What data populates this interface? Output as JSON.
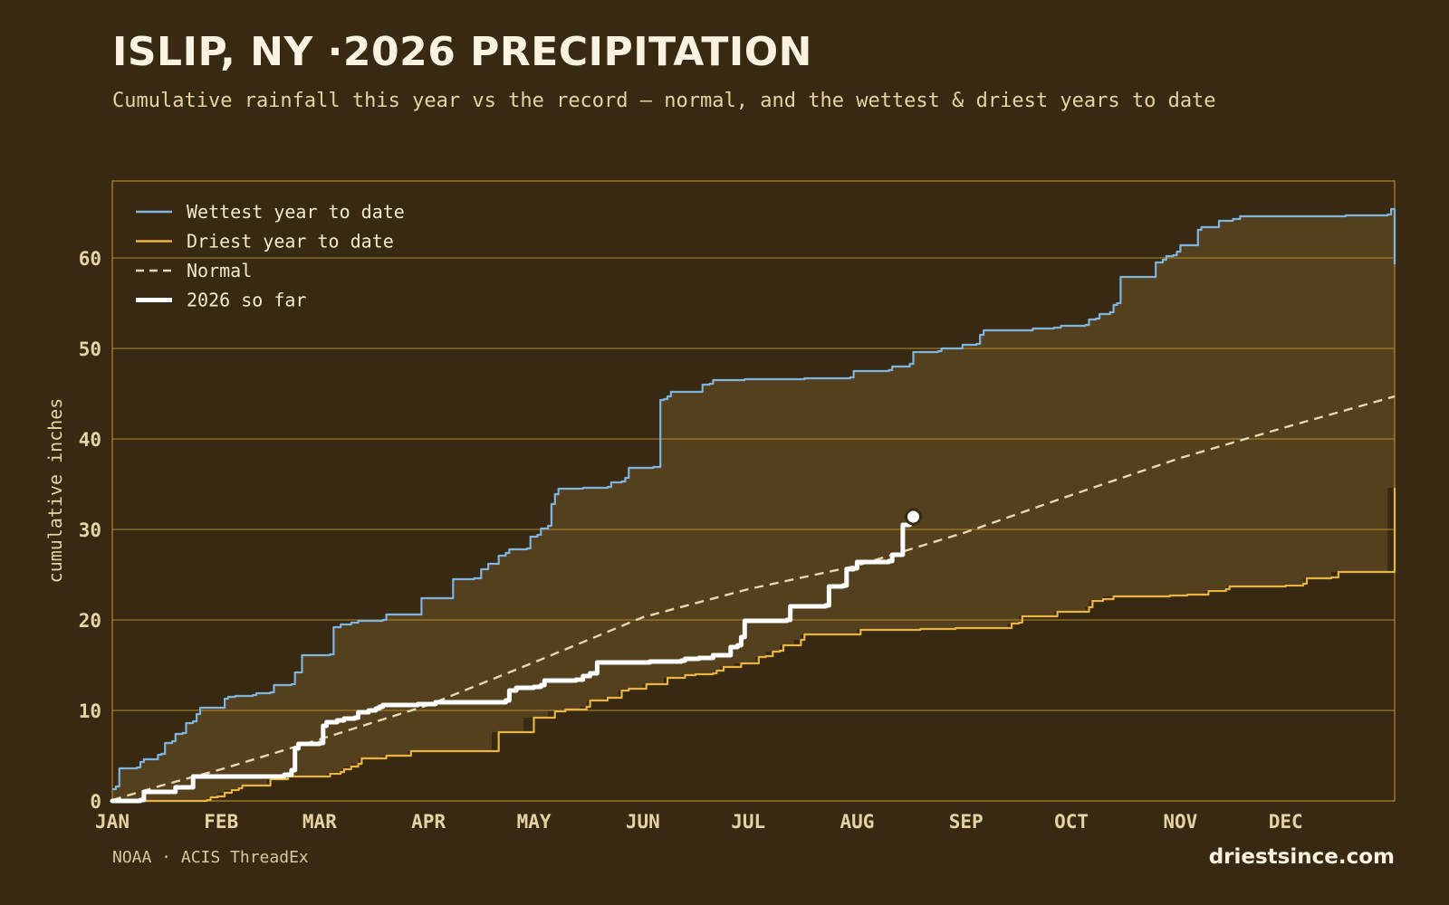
{
  "header": {
    "title": "ISLIP, NY ·2026 PRECIPITATION",
    "subtitle": "Cumulative rainfall this year vs the record — normal, and the wettest & driest years to date"
  },
  "footer": {
    "source": "NOAA · ACIS ThreadEx",
    "brand": "driestsince.com"
  },
  "colors": {
    "background": "#382a12",
    "band_fill": "#54401e",
    "grid": "#c99a32",
    "wettest": "#7fb4de",
    "driest": "#e8b341",
    "normal": "#e6d8b4",
    "current": "#ffffff",
    "tick_text": "#e6d3a4"
  },
  "chart_data": {
    "type": "line",
    "title": "ISLIP, NY ·2026 PRECIPITATION",
    "xlabel": "",
    "ylabel": "cumulative inches",
    "x_unit": "day of year",
    "xlim": [
      1,
      366
    ],
    "ylim": [
      0,
      68.5
    ],
    "yticks": [
      0,
      10,
      20,
      30,
      40,
      50,
      60
    ],
    "month_labels": [
      "JAN",
      "FEB",
      "MAR",
      "APR",
      "MAY",
      "JUN",
      "JUL",
      "AUG",
      "SEP",
      "OCT",
      "NOV",
      "DEC"
    ],
    "month_starts": [
      1,
      32,
      60,
      91,
      121,
      152,
      182,
      213,
      244,
      274,
      305,
      335
    ],
    "grid": true,
    "legend_position": "top-left",
    "series": [
      {
        "name": "Wettest year to date",
        "key": "wettest",
        "style": "solid",
        "points": [
          [
            1,
            1.3
          ],
          [
            2,
            1.6
          ],
          [
            3,
            3.6
          ],
          [
            7,
            3.6
          ],
          [
            8,
            3.7
          ],
          [
            9,
            4.3
          ],
          [
            10,
            4.6
          ],
          [
            13,
            4.6
          ],
          [
            14,
            5.1
          ],
          [
            15,
            5.2
          ],
          [
            16,
            6.4
          ],
          [
            18,
            6.6
          ],
          [
            19,
            7.4
          ],
          [
            21,
            7.5
          ],
          [
            22,
            8.6
          ],
          [
            24,
            8.8
          ],
          [
            25,
            9.6
          ],
          [
            26,
            10.3
          ],
          [
            32,
            10.3
          ],
          [
            33,
            11.3
          ],
          [
            34,
            11.5
          ],
          [
            36,
            11.6
          ],
          [
            41,
            11.7
          ],
          [
            42,
            11.9
          ],
          [
            46,
            12.0
          ],
          [
            47,
            12.8
          ],
          [
            52,
            12.9
          ],
          [
            53,
            14.2
          ],
          [
            55,
            16.1
          ],
          [
            63,
            16.2
          ],
          [
            64,
            19.2
          ],
          [
            66,
            19.5
          ],
          [
            68,
            19.5
          ],
          [
            69,
            19.7
          ],
          [
            71,
            19.9
          ],
          [
            78,
            20.0
          ],
          [
            79,
            20.6
          ],
          [
            88,
            20.6
          ],
          [
            89,
            22.4
          ],
          [
            96,
            22.4
          ],
          [
            98,
            24.5
          ],
          [
            104,
            24.6
          ],
          [
            106,
            25.6
          ],
          [
            108,
            26.2
          ],
          [
            110,
            26.2
          ],
          [
            111,
            27.1
          ],
          [
            113,
            27.4
          ],
          [
            114,
            27.8
          ],
          [
            119,
            27.9
          ],
          [
            120,
            29.2
          ],
          [
            122,
            29.4
          ],
          [
            123,
            30.1
          ],
          [
            125,
            30.4
          ],
          [
            126,
            32.8
          ],
          [
            127,
            33.9
          ],
          [
            128,
            34.5
          ],
          [
            135,
            34.6
          ],
          [
            142,
            34.7
          ],
          [
            143,
            35.2
          ],
          [
            146,
            35.3
          ],
          [
            147,
            35.7
          ],
          [
            148,
            36.8
          ],
          [
            155,
            36.9
          ],
          [
            157,
            44.3
          ],
          [
            158,
            44.4
          ],
          [
            159,
            44.7
          ],
          [
            160,
            45.2
          ],
          [
            168,
            45.2
          ],
          [
            169,
            46.0
          ],
          [
            171,
            46.1
          ],
          [
            172,
            46.5
          ],
          [
            181,
            46.6
          ],
          [
            190,
            46.6
          ],
          [
            198,
            46.7
          ],
          [
            203,
            46.7
          ],
          [
            211,
            46.8
          ],
          [
            212,
            47.5
          ],
          [
            222,
            47.6
          ],
          [
            223,
            48.0
          ],
          [
            228,
            48.3
          ],
          [
            229,
            49.6
          ],
          [
            236,
            49.7
          ],
          [
            237,
            50.0
          ],
          [
            242,
            50.0
          ],
          [
            243,
            50.4
          ],
          [
            247,
            50.5
          ],
          [
            248,
            51.5
          ],
          [
            249,
            52.0
          ],
          [
            262,
            52.0
          ],
          [
            263,
            52.2
          ],
          [
            269,
            52.3
          ],
          [
            271,
            52.5
          ],
          [
            278,
            52.6
          ],
          [
            279,
            53.2
          ],
          [
            281,
            53.3
          ],
          [
            282,
            53.8
          ],
          [
            285,
            54.0
          ],
          [
            286,
            54.8
          ],
          [
            287,
            55.0
          ],
          [
            288,
            57.9
          ],
          [
            297,
            57.9
          ],
          [
            298,
            59.5
          ],
          [
            300,
            59.8
          ],
          [
            301,
            60.2
          ],
          [
            303,
            60.3
          ],
          [
            304,
            60.7
          ],
          [
            305,
            61.4
          ],
          [
            309,
            61.4
          ],
          [
            310,
            63.1
          ],
          [
            311,
            63.4
          ],
          [
            315,
            63.4
          ],
          [
            316,
            64.1
          ],
          [
            320,
            64.3
          ],
          [
            322,
            64.6
          ],
          [
            350,
            64.6
          ],
          [
            352,
            64.7
          ],
          [
            364,
            64.8
          ],
          [
            365,
            65.4
          ],
          [
            366,
            59.3
          ]
        ]
      },
      {
        "name": "Driest year to date",
        "key": "driest",
        "style": "solid",
        "points": [
          [
            1,
            0.0
          ],
          [
            28,
            0.1
          ],
          [
            29,
            0.4
          ],
          [
            31,
            0.5
          ],
          [
            33,
            0.9
          ],
          [
            35,
            1.2
          ],
          [
            37,
            1.4
          ],
          [
            38,
            1.7
          ],
          [
            45,
            1.7
          ],
          [
            46,
            2.4
          ],
          [
            50,
            2.4
          ],
          [
            51,
            2.7
          ],
          [
            62,
            2.7
          ],
          [
            63,
            3.0
          ],
          [
            66,
            3.2
          ],
          [
            67,
            3.5
          ],
          [
            69,
            3.8
          ],
          [
            71,
            4.1
          ],
          [
            72,
            4.7
          ],
          [
            78,
            4.7
          ],
          [
            79,
            5.0
          ],
          [
            85,
            5.0
          ],
          [
            86,
            5.5
          ],
          [
            109,
            5.5
          ],
          [
            111,
            7.6
          ],
          [
            118,
            7.6
          ],
          [
            121,
            9.2
          ],
          [
            125,
            9.2
          ],
          [
            127,
            9.9
          ],
          [
            130,
            10.1
          ],
          [
            134,
            10.1
          ],
          [
            136,
            10.4
          ],
          [
            137,
            11.1
          ],
          [
            141,
            11.1
          ],
          [
            142,
            11.4
          ],
          [
            145,
            11.4
          ],
          [
            146,
            12.2
          ],
          [
            148,
            12.4
          ],
          [
            152,
            12.4
          ],
          [
            153,
            12.9
          ],
          [
            158,
            12.9
          ],
          [
            159,
            13.6
          ],
          [
            163,
            13.6
          ],
          [
            164,
            13.9
          ],
          [
            167,
            14.0
          ],
          [
            172,
            14.1
          ],
          [
            173,
            14.4
          ],
          [
            174,
            14.4
          ],
          [
            175,
            14.8
          ],
          [
            178,
            14.8
          ],
          [
            180,
            15.2
          ],
          [
            184,
            15.2
          ],
          [
            185,
            15.9
          ],
          [
            187,
            16.0
          ],
          [
            189,
            16.5
          ],
          [
            191,
            16.6
          ],
          [
            192,
            17.2
          ],
          [
            195,
            17.2
          ],
          [
            197,
            17.8
          ],
          [
            198,
            18.4
          ],
          [
            213,
            18.4
          ],
          [
            214,
            18.9
          ],
          [
            230,
            18.9
          ],
          [
            231,
            19.0
          ],
          [
            240,
            19.0
          ],
          [
            241,
            19.1
          ],
          [
            256,
            19.1
          ],
          [
            257,
            19.6
          ],
          [
            259,
            19.7
          ],
          [
            260,
            20.4
          ],
          [
            269,
            20.4
          ],
          [
            270,
            20.9
          ],
          [
            278,
            20.9
          ],
          [
            279,
            21.4
          ],
          [
            280,
            22.1
          ],
          [
            283,
            22.3
          ],
          [
            286,
            22.6
          ],
          [
            302,
            22.7
          ],
          [
            307,
            22.8
          ],
          [
            312,
            22.8
          ],
          [
            313,
            23.2
          ],
          [
            318,
            23.4
          ],
          [
            319,
            23.7
          ],
          [
            335,
            23.8
          ],
          [
            340,
            24.0
          ],
          [
            341,
            24.6
          ],
          [
            348,
            24.7
          ],
          [
            350,
            25.3
          ],
          [
            364,
            25.3
          ],
          [
            366,
            34.6
          ]
        ]
      },
      {
        "name": "Normal",
        "key": "normal",
        "style": "dashed",
        "points": [
          [
            1,
            0.1
          ],
          [
            15,
            1.7
          ],
          [
            32,
            3.5
          ],
          [
            60,
            6.8
          ],
          [
            91,
            10.6
          ],
          [
            121,
            15.3
          ],
          [
            152,
            20.3
          ],
          [
            182,
            23.4
          ],
          [
            213,
            26.0
          ],
          [
            244,
            29.7
          ],
          [
            274,
            33.8
          ],
          [
            305,
            37.9
          ],
          [
            335,
            41.3
          ],
          [
            366,
            44.7
          ]
        ]
      },
      {
        "name": "2026 so far",
        "key": "current",
        "style": "bold",
        "points": [
          [
            1,
            0.0
          ],
          [
            9,
            0.1
          ],
          [
            10,
            1.0
          ],
          [
            18,
            1.0
          ],
          [
            19,
            1.5
          ],
          [
            23,
            1.5
          ],
          [
            24,
            2.7
          ],
          [
            42,
            2.7
          ],
          [
            50,
            2.9
          ],
          [
            52,
            3.4
          ],
          [
            53,
            5.8
          ],
          [
            54,
            6.3
          ],
          [
            60,
            6.4
          ],
          [
            61,
            8.3
          ],
          [
            62,
            8.7
          ],
          [
            64,
            8.7
          ],
          [
            65,
            8.9
          ],
          [
            67,
            9.1
          ],
          [
            70,
            9.2
          ],
          [
            71,
            9.8
          ],
          [
            74,
            10.0
          ],
          [
            76,
            10.2
          ],
          [
            77,
            10.4
          ],
          [
            78,
            10.6
          ],
          [
            88,
            10.7
          ],
          [
            93,
            10.9
          ],
          [
            104,
            10.9
          ],
          [
            113,
            11.1
          ],
          [
            114,
            12.2
          ],
          [
            116,
            12.5
          ],
          [
            121,
            12.6
          ],
          [
            123,
            12.8
          ],
          [
            124,
            13.3
          ],
          [
            133,
            13.4
          ],
          [
            135,
            13.8
          ],
          [
            137,
            14.1
          ],
          [
            139,
            15.3
          ],
          [
            147,
            15.3
          ],
          [
            154,
            15.4
          ],
          [
            163,
            15.5
          ],
          [
            164,
            15.7
          ],
          [
            168,
            15.8
          ],
          [
            172,
            16.1
          ],
          [
            176,
            16.1
          ],
          [
            177,
            17.0
          ],
          [
            179,
            17.2
          ],
          [
            180,
            18.1
          ],
          [
            181,
            19.9
          ],
          [
            193,
            20.0
          ],
          [
            194,
            21.5
          ],
          [
            204,
            21.6
          ],
          [
            205,
            23.7
          ],
          [
            209,
            23.8
          ],
          [
            210,
            25.6
          ],
          [
            212,
            25.7
          ],
          [
            213,
            26.4
          ],
          [
            222,
            26.5
          ],
          [
            223,
            27.2
          ],
          [
            225,
            27.2
          ],
          [
            226,
            30.5
          ],
          [
            228,
            31.2
          ]
        ]
      }
    ],
    "current_marker": {
      "day": 229,
      "value": 31.4
    }
  },
  "legend": [
    {
      "label": "Wettest year to date",
      "key": "wettest"
    },
    {
      "label": "Driest year to date",
      "key": "driest"
    },
    {
      "label": "Normal",
      "key": "normal"
    },
    {
      "label": "2026 so far",
      "key": "current"
    }
  ]
}
